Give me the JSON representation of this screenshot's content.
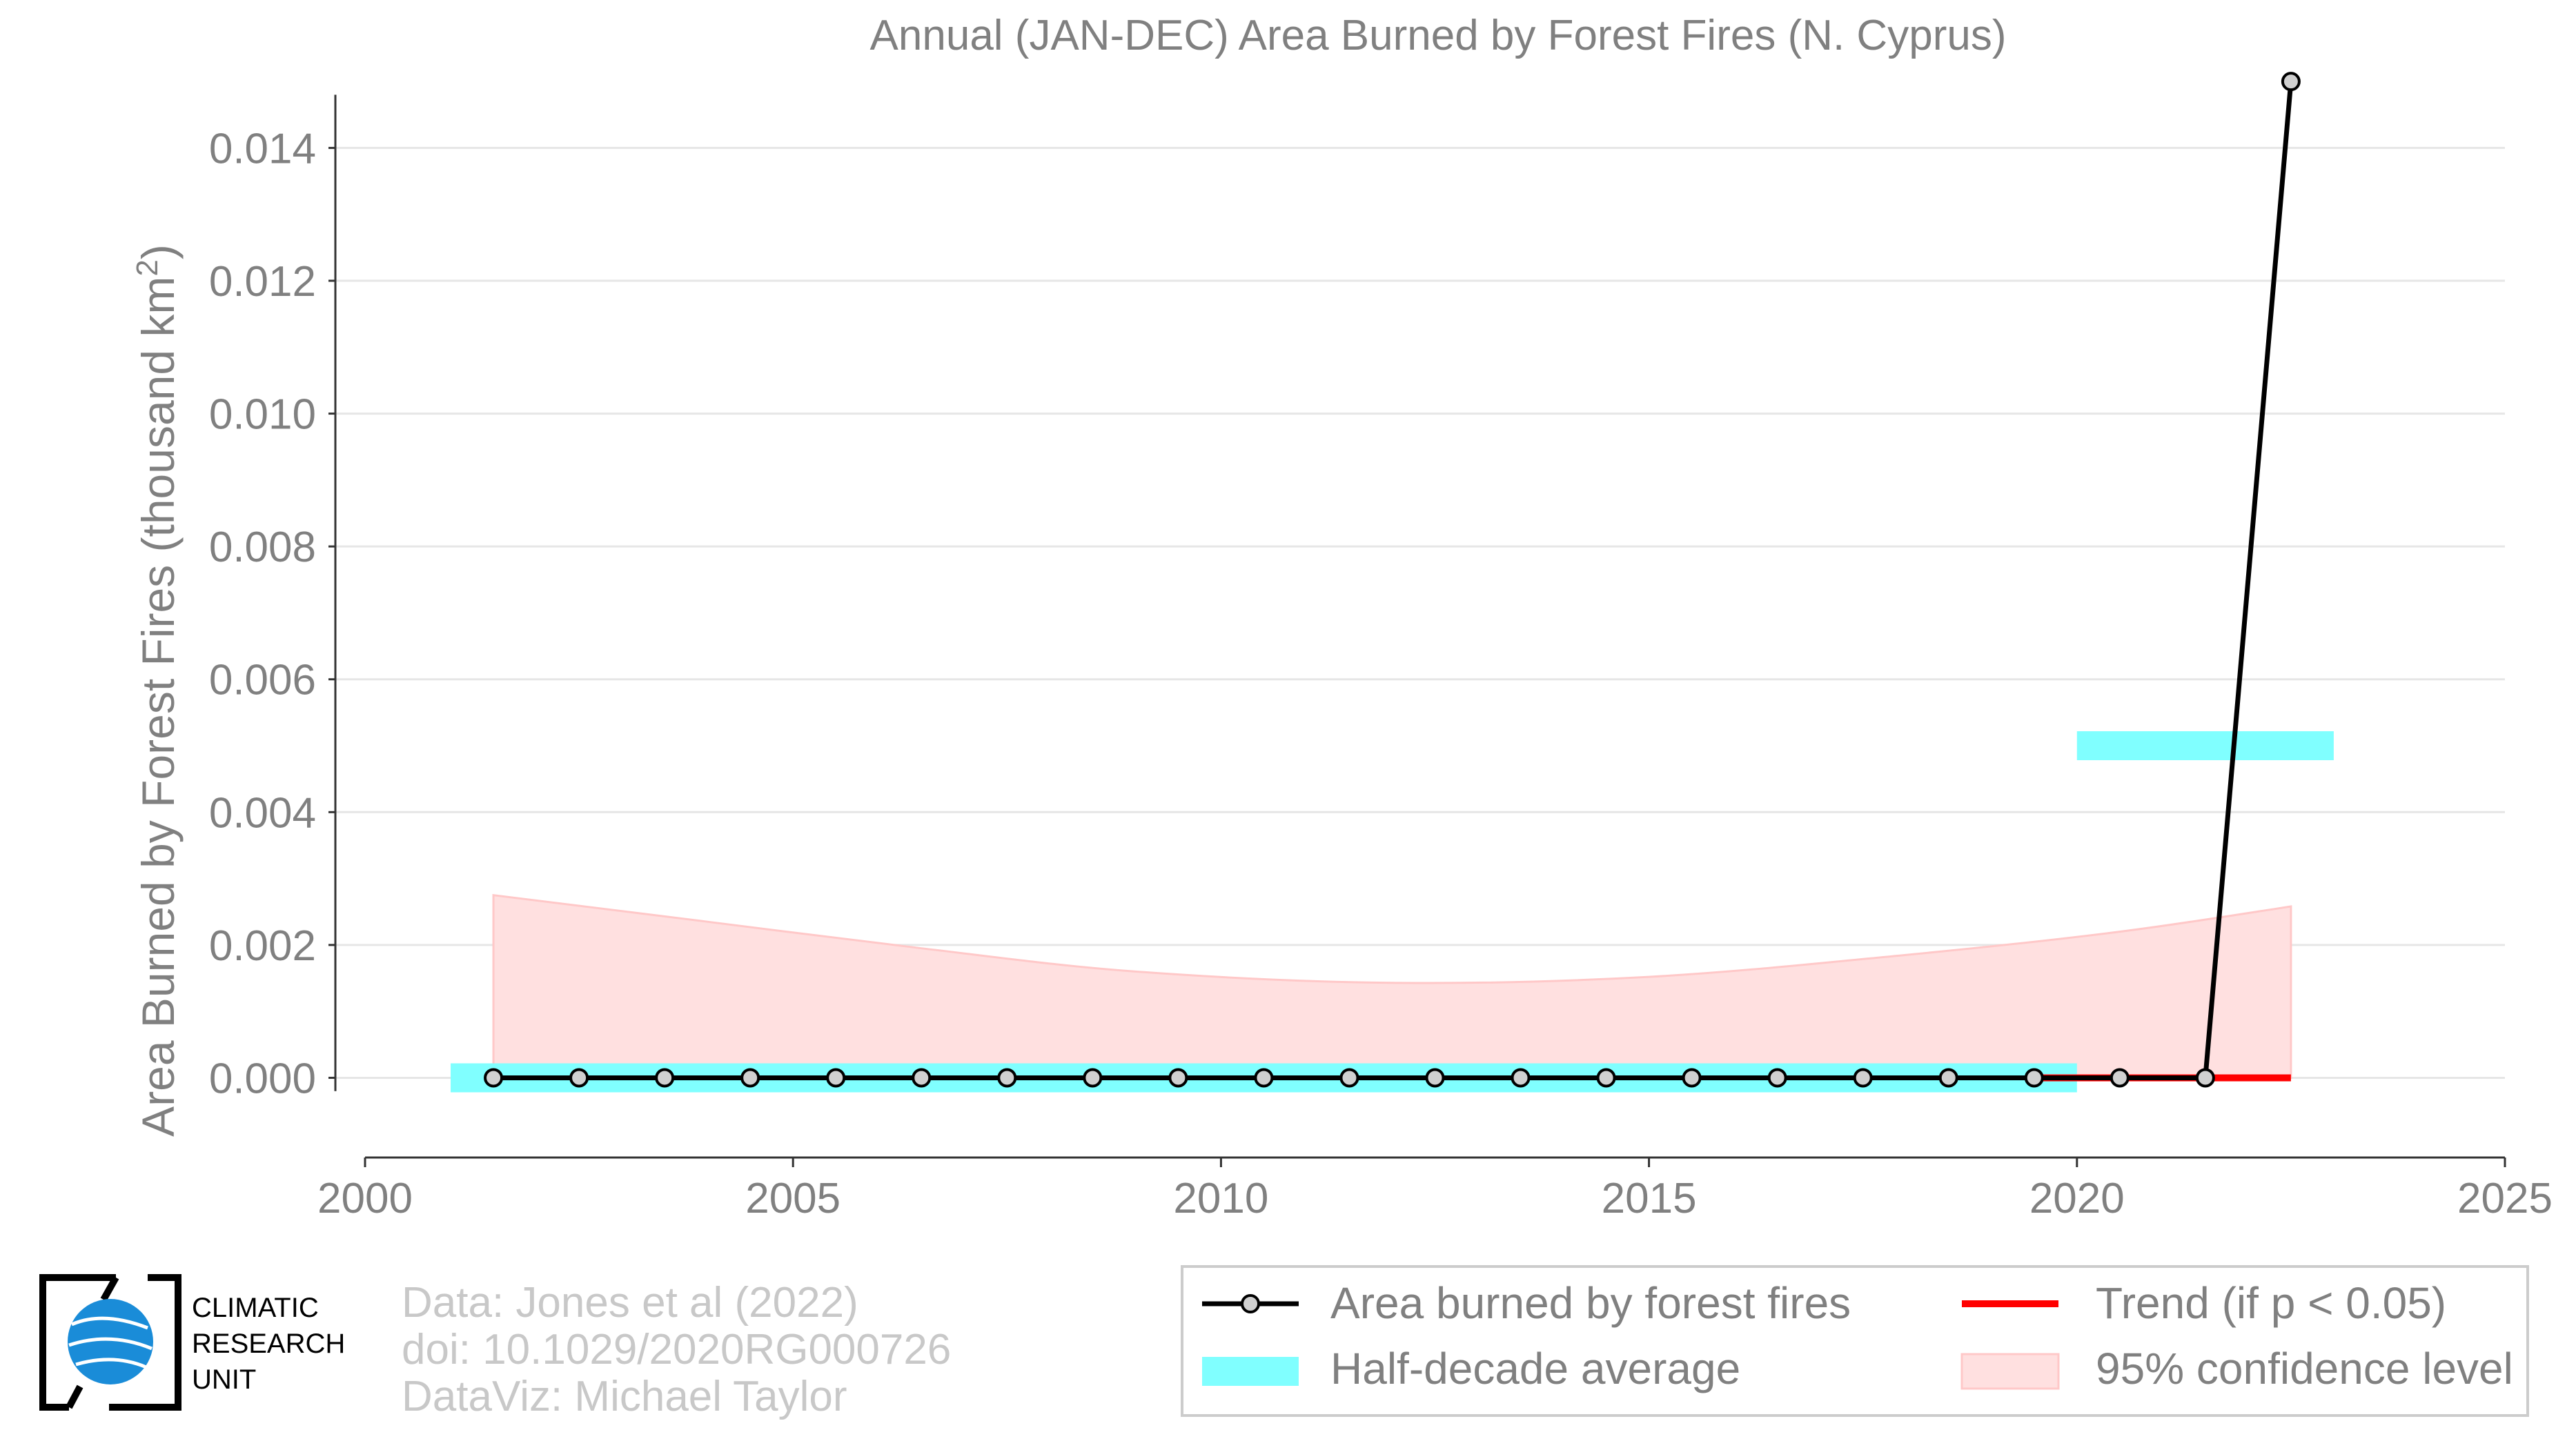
{
  "chart_data": {
    "type": "line",
    "title": "Annual (JAN-DEC) Area Burned by Forest Fires (N. Cyprus)",
    "ylabel_main": "Area Burned by Forest Fires (thousand km",
    "ylabel_sup": "2",
    "ylabel_close": ")",
    "xlim": [
      2000,
      2025
    ],
    "ylim": [
      -0.0012,
      0.0155
    ],
    "x_ticks": [
      2000,
      2005,
      2010,
      2015,
      2020,
      2025
    ],
    "x_tick_labels": [
      "2000",
      "2005",
      "2010",
      "2015",
      "2020",
      "2025"
    ],
    "y_ticks": [
      0.0,
      0.002,
      0.004,
      0.006,
      0.008,
      0.01,
      0.012,
      0.014
    ],
    "y_tick_labels": [
      "0.000",
      "0.002",
      "0.004",
      "0.006",
      "0.008",
      "0.010",
      "0.012",
      "0.014"
    ],
    "grid": "horizontal",
    "series": [
      {
        "name": "Area burned by forest fires",
        "kind": "line-markers",
        "color": "#000000",
        "x": [
          2001.5,
          2002.5,
          2003.5,
          2004.5,
          2005.5,
          2006.5,
          2007.5,
          2008.5,
          2009.5,
          2010.5,
          2011.5,
          2012.5,
          2013.5,
          2014.5,
          2015.5,
          2016.5,
          2017.5,
          2018.5,
          2019.5,
          2020.5,
          2021.5,
          2022.5
        ],
        "values": [
          0,
          0,
          0,
          0,
          0,
          0,
          0,
          0,
          0,
          0,
          0,
          0,
          0,
          0,
          0,
          0,
          0,
          0,
          0,
          0,
          0,
          0.015
        ]
      },
      {
        "name": "Half-decade average",
        "kind": "bars",
        "color": "#80ffff",
        "segments": [
          {
            "x0": 2001.0,
            "x1": 2020.0,
            "value": 0.0
          },
          {
            "x0": 2020.0,
            "x1": 2023.0,
            "value": 0.005
          }
        ]
      },
      {
        "name": "Trend (if p < 0.05)",
        "kind": "line",
        "color": "#ff0000",
        "x": [
          2019.5,
          2022.5
        ],
        "values": [
          0.0,
          0.0
        ]
      },
      {
        "name": "95% confidence level",
        "kind": "band",
        "color": "#ffc8c8",
        "x": [
          2001.5,
          2004.0,
          2006.5,
          2009.0,
          2012.0,
          2015.0,
          2018.0,
          2020.5,
          2022.5
        ],
        "upper": [
          0.00275,
          0.00235,
          0.00195,
          0.0016,
          0.00143,
          0.00152,
          0.00185,
          0.0022,
          0.00258
        ],
        "lower": [
          0.0,
          0.0,
          0.0,
          0.0,
          0.0,
          0.0,
          0.0,
          0.0,
          0.0
        ]
      }
    ],
    "legend": {
      "placement": "bottom-right",
      "items": [
        {
          "label": "Area burned by forest fires",
          "kind": "line-marker",
          "color": "#000000"
        },
        {
          "label": "Trend (if p < 0.05)",
          "kind": "line",
          "color": "#ff0000"
        },
        {
          "label": "Half-decade average",
          "kind": "patch",
          "color": "#80ffff"
        },
        {
          "label": "95% confidence level",
          "kind": "patch",
          "color": "#ffc8c8"
        }
      ]
    }
  },
  "credits": {
    "line1": "Data: Jones et al (2022)",
    "line2": "doi: 10.1029/2020RG000726",
    "line3": "DataViz: Michael Taylor"
  },
  "logo": {
    "line1": "CLIMATIC",
    "line2": "RESEARCH",
    "line3": "UNIT",
    "color": "#1a8cd8"
  }
}
